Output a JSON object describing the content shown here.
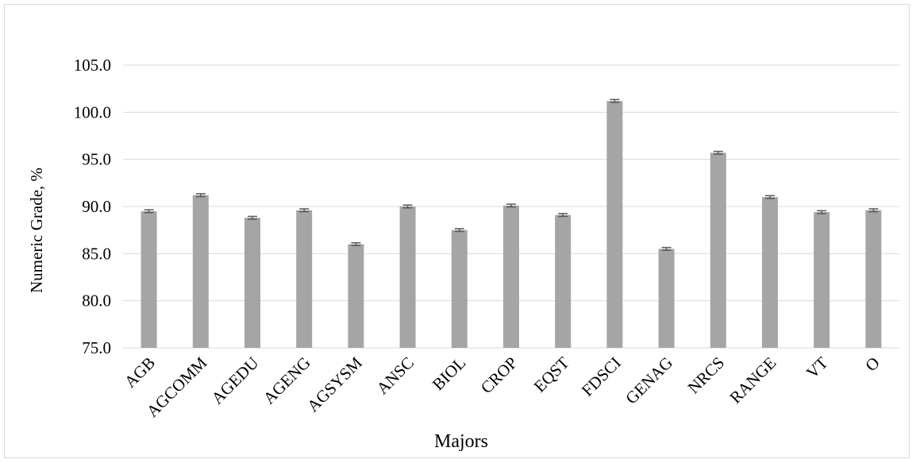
{
  "chart_data": {
    "type": "bar",
    "title": "",
    "xlabel": "Majors",
    "ylabel": "Numeric Grade, %",
    "ylim": [
      75,
      105
    ],
    "y_ticks": [
      75,
      80,
      85,
      90,
      95,
      100,
      105
    ],
    "y_tick_labels": [
      "75.0",
      "80.0",
      "85.0",
      "90.0",
      "95.0",
      "100.0",
      "105.0"
    ],
    "grid": true,
    "legend": "none",
    "error_bars": true,
    "error_value": 0.15,
    "bar_color": "#a5a5a5",
    "error_bar_color": "#595959",
    "grid_color": "#d9d9d9",
    "categories": [
      "AGB",
      "AGCOMM",
      "AGEDU",
      "AGENG",
      "AGSYSM",
      "ANSC",
      "BIOL",
      "CROP",
      "EQST",
      "FDSCI",
      "GENAG",
      "NRCS",
      "RANGE",
      "VT",
      "O"
    ],
    "values": [
      89.5,
      91.2,
      88.8,
      89.6,
      86.0,
      90.0,
      87.5,
      90.1,
      89.1,
      101.2,
      85.5,
      95.7,
      91.0,
      89.4,
      89.6
    ]
  }
}
